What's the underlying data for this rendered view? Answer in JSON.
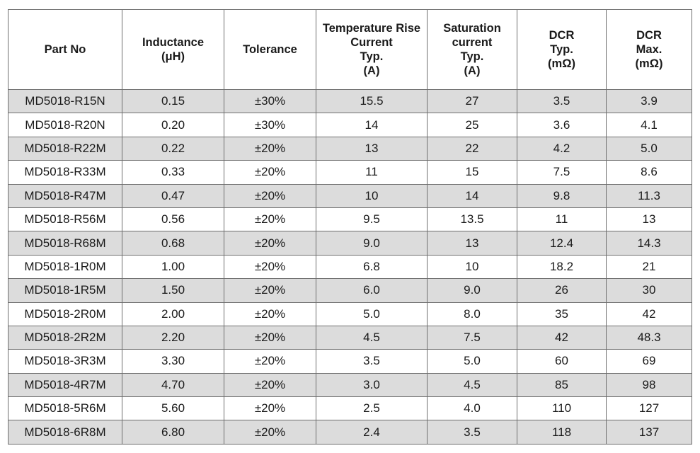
{
  "headers": [
    {
      "lines": [
        "Part No"
      ]
    },
    {
      "lines": [
        "Inductance",
        "(μH)"
      ]
    },
    {
      "lines": [
        "Tolerance"
      ]
    },
    {
      "lines": [
        "Temperature Rise",
        "Current",
        "Typ.",
        "(A)"
      ]
    },
    {
      "lines": [
        "Saturation",
        "current",
        "Typ.",
        "(A)"
      ]
    },
    {
      "lines": [
        "DCR",
        "Typ.",
        "(mΩ)"
      ]
    },
    {
      "lines": [
        "DCR",
        "Max.",
        "(mΩ)"
      ]
    }
  ],
  "rows": [
    [
      "MD5018-R15N",
      "0.15",
      "±30%",
      "15.5",
      "27",
      "3.5",
      "3.9"
    ],
    [
      "MD5018-R20N",
      "0.20",
      "±30%",
      "14",
      "25",
      "3.6",
      "4.1"
    ],
    [
      "MD5018-R22M",
      "0.22",
      "±20%",
      "13",
      "22",
      "4.2",
      "5.0"
    ],
    [
      "MD5018-R33M",
      "0.33",
      "±20%",
      "11",
      "15",
      "7.5",
      "8.6"
    ],
    [
      "MD5018-R47M",
      "0.47",
      "±20%",
      "10",
      "14",
      "9.8",
      "11.3"
    ],
    [
      "MD5018-R56M",
      "0.56",
      "±20%",
      "9.5",
      "13.5",
      "11",
      "13"
    ],
    [
      "MD5018-R68M",
      "0.68",
      "±20%",
      "9.0",
      "13",
      "12.4",
      "14.3"
    ],
    [
      "MD5018-1R0M",
      "1.00",
      "±20%",
      "6.8",
      "10",
      "18.2",
      "21"
    ],
    [
      "MD5018-1R5M",
      "1.50",
      "±20%",
      "6.0",
      "9.0",
      "26",
      "30"
    ],
    [
      "MD5018-2R0M",
      "2.00",
      "±20%",
      "5.0",
      "8.0",
      "35",
      "42"
    ],
    [
      "MD5018-2R2M",
      "2.20",
      "±20%",
      "4.5",
      "7.5",
      "42",
      "48.3"
    ],
    [
      "MD5018-3R3M",
      "3.30",
      "±20%",
      "3.5",
      "5.0",
      "60",
      "69"
    ],
    [
      "MD5018-4R7M",
      "4.70",
      "±20%",
      "3.0",
      "4.5",
      "85",
      "98"
    ],
    [
      "MD5018-5R6M",
      "5.60",
      "±20%",
      "2.5",
      "4.0",
      "110",
      "127"
    ],
    [
      "MD5018-6R8M",
      "6.80",
      "±20%",
      "2.4",
      "3.5",
      "118",
      "137"
    ]
  ],
  "colors": {
    "row_shade": "#dcdcdc",
    "border": "#6e6e6e"
  }
}
